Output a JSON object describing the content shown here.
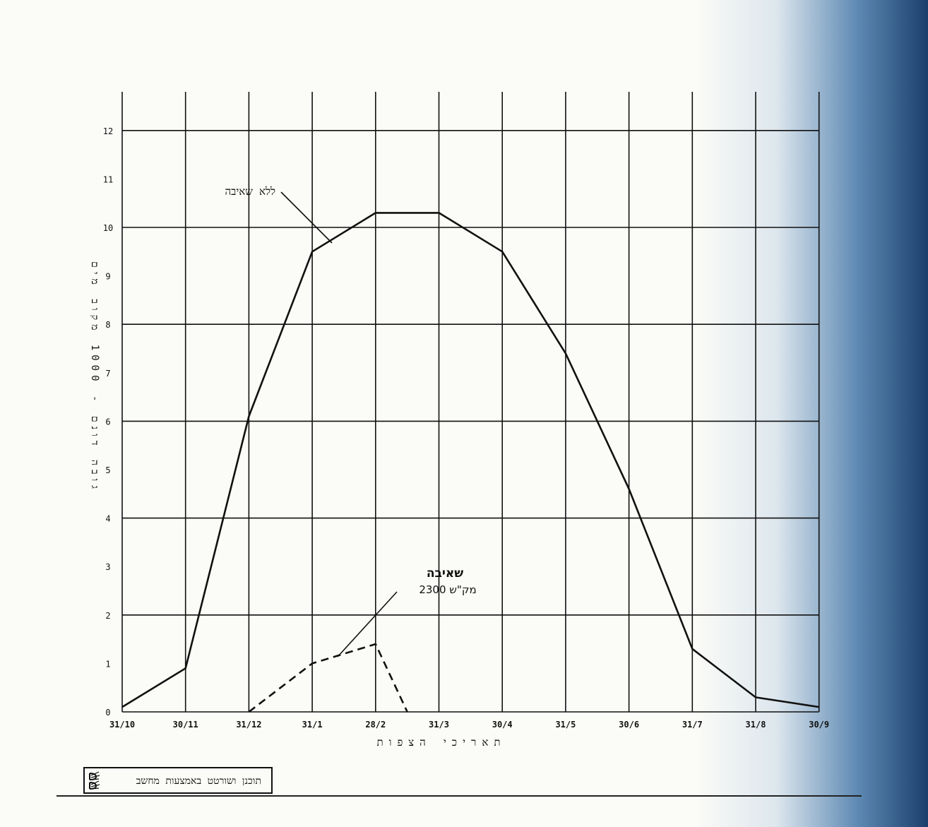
{
  "chart_data": {
    "type": "line",
    "title": "",
    "xlabel": "תאריכי הצפות",
    "ylabel": "גובה דונם - 1000 מקוב מים",
    "x": [
      "31/10",
      "30/11",
      "31/12",
      "31/1",
      "28/2",
      "31/3",
      "30/4",
      "31/5",
      "30/6",
      "31/7",
      "31/8",
      "30/9"
    ],
    "ylim": [
      0,
      12
    ],
    "yticks": [
      0,
      1,
      2,
      3,
      4,
      5,
      6,
      7,
      8,
      9,
      10,
      11,
      12
    ],
    "grid": true,
    "series": [
      {
        "name": "ללא שאיבה",
        "style": "solid",
        "points": [
          [
            0,
            0.1
          ],
          [
            1,
            0.9
          ],
          [
            2,
            6.1
          ],
          [
            3,
            9.5
          ],
          [
            4,
            10.3
          ],
          [
            5,
            10.3
          ],
          [
            6,
            9.5
          ],
          [
            7,
            7.4
          ],
          [
            8,
            4.6
          ],
          [
            9,
            1.3
          ],
          [
            10,
            0.3
          ],
          [
            11,
            0.1
          ]
        ]
      },
      {
        "name": "שאיבה",
        "style": "dashed",
        "points": [
          [
            2,
            0.0
          ],
          [
            3,
            1.0
          ],
          [
            4,
            1.4
          ],
          [
            4.5,
            0.0
          ]
        ]
      }
    ],
    "annotations": [
      {
        "text": "ללא שאיבה"
      },
      {
        "text": "שאיבה"
      },
      {
        "text": "2300 מק\"ש"
      }
    ]
  },
  "footer": {
    "credit": "תוכנן ושורטט באמצעות מחשב"
  },
  "colors": {
    "ink": "#111111",
    "paper": "#fbfbf7",
    "edge_shade": "#1b3f6c"
  }
}
